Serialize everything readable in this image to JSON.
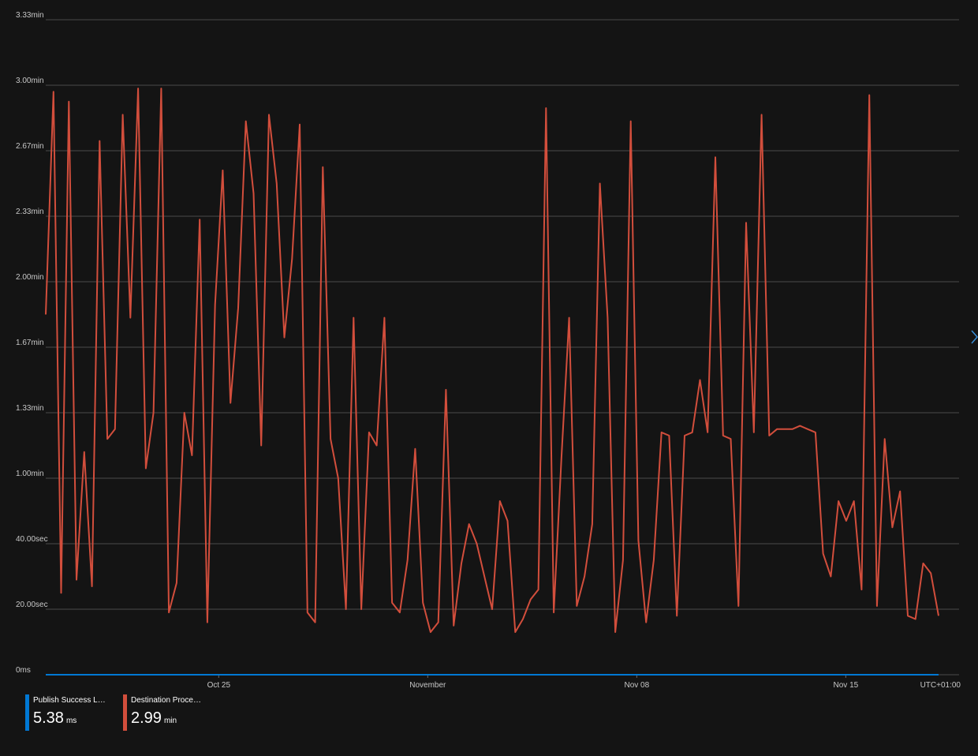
{
  "chart_data": {
    "type": "line",
    "y_ticks": [
      "3.33min",
      "3.00min",
      "2.67min",
      "2.33min",
      "2.00min",
      "1.67min",
      "1.33min",
      "1.00min",
      "40.00sec",
      "20.00sec",
      "0ms"
    ],
    "y_tick_values_sec": [
      200,
      180,
      160,
      140,
      120,
      100,
      80,
      60,
      40,
      20,
      0
    ],
    "ylim_sec": [
      0,
      200
    ],
    "x_ticks": [
      "Oct 25",
      "November",
      "Nov 08",
      "Nov 15"
    ],
    "x_tick_day_index": [
      5,
      12,
      19,
      26
    ],
    "timezone_label": "UTC+01:00",
    "grid": true,
    "legend_position": "bottom-left",
    "series": [
      {
        "name": "Publish Success Late...",
        "color": "#0078d4",
        "unit": "ms",
        "summary_value": "5.38",
        "values_sec": [
          0.005,
          0.005,
          0.005,
          0.005,
          0.005,
          0.005,
          0.005,
          0.005,
          0.005,
          0.005,
          0.005,
          0.005,
          0.005,
          0.005,
          0.005,
          0.005,
          0.005,
          0.005,
          0.005,
          0.005,
          0.005,
          0.005,
          0.005,
          0.005,
          0.005,
          0.005,
          0.005,
          0.005,
          0.005,
          0.005
        ]
      },
      {
        "name": "Destination Processi...",
        "color": "#d24e3c",
        "unit": "min",
        "summary_value": "2.99",
        "values_sec": [
          110,
          178,
          25,
          175,
          29,
          68,
          27,
          163,
          72,
          75,
          171,
          109,
          179,
          63,
          80,
          179,
          19,
          28,
          80,
          67,
          139,
          16,
          113,
          154,
          83,
          112,
          169,
          147,
          70,
          171,
          150,
          103,
          127,
          168,
          19,
          16,
          155,
          72,
          60,
          20,
          109,
          20,
          74,
          70,
          109,
          22,
          19,
          35,
          69,
          22,
          13,
          16,
          87,
          15,
          34,
          46,
          40,
          30,
          20,
          53,
          47,
          13,
          17,
          23,
          26,
          173,
          19,
          66,
          109,
          21,
          30,
          46,
          150,
          109,
          13,
          35,
          169,
          41,
          16,
          35,
          74,
          73,
          18,
          73,
          74,
          90,
          74,
          158,
          73,
          72,
          21,
          138,
          74,
          171,
          73,
          75,
          75,
          75,
          76,
          75,
          74,
          37,
          30,
          53,
          47,
          53,
          26,
          177,
          21,
          72,
          45,
          56,
          18,
          17,
          34,
          31,
          18
        ]
      }
    ]
  }
}
